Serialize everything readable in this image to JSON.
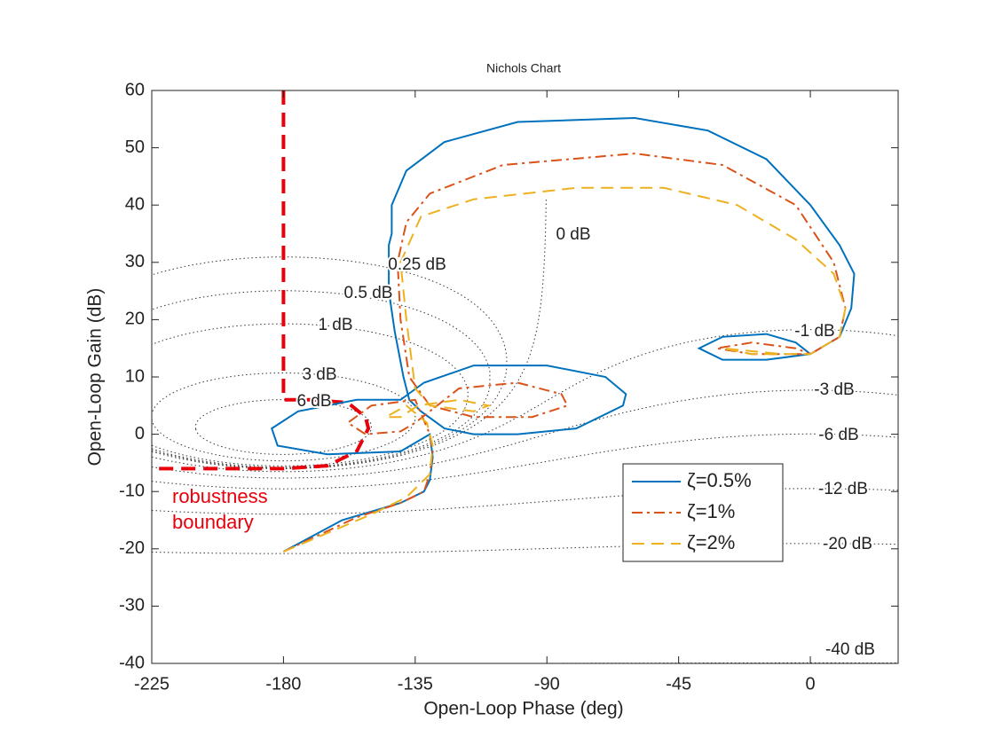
{
  "chart_data": {
    "type": "nichols",
    "title": "Nichols Chart",
    "x_label": "Open-Loop Phase (deg)",
    "y_label": "Open-Loop Gain (dB)",
    "xlim": [
      -225,
      30
    ],
    "ylim": [
      -40,
      60
    ],
    "xticks": [
      -225,
      -180,
      -135,
      -90,
      -45,
      0
    ],
    "yticks": [
      -40,
      -30,
      -20,
      -10,
      0,
      10,
      20,
      30,
      40,
      50,
      60
    ],
    "mag_contours": [
      {
        "value": 0,
        "label": "0 dB"
      },
      {
        "value": 0.25,
        "label": "0.25 dB"
      },
      {
        "value": 0.5,
        "label": "0.5 dB"
      },
      {
        "value": 1,
        "label": "1 dB"
      },
      {
        "value": 3,
        "label": "3 dB"
      },
      {
        "value": 6,
        "label": "6 dB"
      },
      {
        "value": -1,
        "label": "-1 dB"
      },
      {
        "value": -3,
        "label": "-3 dB"
      },
      {
        "value": -6,
        "label": "-6 dB"
      },
      {
        "value": -12,
        "label": "-12 dB"
      },
      {
        "value": -20,
        "label": "-20 dB"
      },
      {
        "value": -40,
        "label": "-40 dB"
      }
    ],
    "series": [
      {
        "name": "ζ=0.5%",
        "color": "#0072BD",
        "dash": "solid",
        "x": [
          -180,
          -160,
          -140,
          -132,
          -130,
          -129,
          -130,
          -140,
          -165,
          -182,
          -184,
          -175,
          -155,
          -140,
          -132,
          -115,
          -90,
          -70,
          -63,
          -64,
          -80,
          -100,
          -115,
          -125,
          -133,
          -137,
          -139,
          -142,
          -144,
          -144,
          -143,
          -143,
          -138,
          -125,
          -100,
          -60,
          -35,
          -15,
          0,
          10,
          15,
          14,
          10,
          0,
          -15,
          -30,
          -38,
          -30,
          -15,
          -5,
          0
        ],
        "values": [
          -20.5,
          -15,
          -12,
          -10,
          -8,
          -4,
          0,
          -3,
          -3.5,
          -2,
          1,
          4,
          6,
          6,
          9,
          12,
          12,
          10,
          7,
          5,
          1,
          0,
          0,
          1,
          4,
          6,
          10,
          18,
          25,
          33,
          35,
          40,
          46,
          51,
          54.5,
          55.2,
          53,
          48,
          40,
          33,
          28,
          22,
          17,
          14,
          13,
          13,
          15,
          17,
          17.5,
          16,
          14
        ]
      },
      {
        "name": "ζ=1%",
        "color": "#D95319",
        "dash": "dashdot",
        "x": [
          -180,
          -155,
          -140,
          -132,
          -130,
          -129,
          -130,
          -135,
          -150,
          -158,
          -152,
          -140,
          -135,
          -120,
          -100,
          -85,
          -83,
          -95,
          -115,
          -130,
          -137,
          -140,
          -141,
          -138,
          -130,
          -105,
          -60,
          -30,
          -5,
          8,
          12,
          10,
          0,
          -20,
          -32,
          -20,
          -5,
          0
        ],
        "values": [
          -20.5,
          -14.5,
          -12,
          -10,
          -7,
          -3,
          0,
          6,
          5,
          2,
          0,
          0.5,
          2,
          8,
          9,
          7,
          5,
          3,
          3,
          5,
          10,
          20,
          30,
          37,
          42,
          47,
          49,
          47,
          40,
          30,
          22,
          17,
          14,
          14,
          15,
          16,
          15,
          14
        ]
      },
      {
        "name": "ζ=2%",
        "color": "#EDB120",
        "dash": "dashed",
        "x": [
          -180,
          -150,
          -138,
          -130,
          -129,
          -131,
          -138,
          -145,
          -140,
          -134,
          -120,
          -110,
          -115,
          -130,
          -135,
          -138,
          -140,
          -133,
          -115,
          -80,
          -50,
          -25,
          -5,
          8,
          12,
          10,
          0,
          -20,
          -30,
          -10,
          0
        ],
        "values": [
          -20.5,
          -14,
          -11,
          -7,
          -2,
          2,
          5,
          3,
          3,
          5,
          6,
          5,
          4,
          5,
          8,
          20,
          30,
          38,
          41,
          43,
          43,
          40,
          34,
          28,
          22,
          17,
          14,
          14,
          15,
          14,
          14
        ]
      }
    ],
    "boundary": {
      "label": "robustness boundary",
      "color": "#E8000B",
      "x": [
        -180,
        -180,
        -170,
        -158,
        -152,
        -151,
        -155,
        -165,
        -180,
        -225
      ],
      "values": [
        60,
        6,
        6,
        5.5,
        3,
        1,
        -3,
        -5.5,
        -6,
        -6
      ]
    },
    "legend_position": "lower right"
  }
}
